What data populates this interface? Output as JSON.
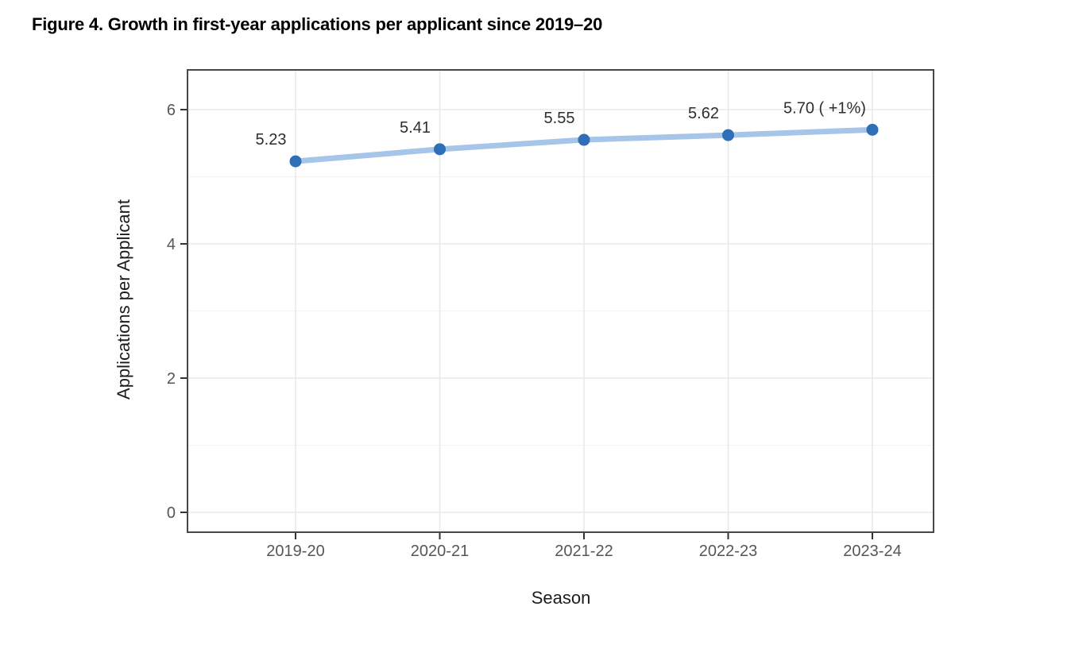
{
  "figure": {
    "title": "Figure 4. Growth in first-year applications per applicant since 2019–20"
  },
  "chart_data": {
    "type": "line",
    "categories": [
      "2019-20",
      "2020-21",
      "2021-22",
      "2022-23",
      "2023-24"
    ],
    "values": [
      5.23,
      5.41,
      5.55,
      5.62,
      5.7
    ],
    "point_labels": [
      "5.23",
      "5.41",
      "5.55",
      "5.62",
      "5.70 ( +1%)"
    ],
    "xlabel": "Season",
    "ylabel": "Applications per Applicant",
    "yticks": [
      0,
      2,
      4,
      6
    ],
    "yticks_minor": [
      1,
      3,
      5
    ],
    "ylim": [
      -0.3,
      6.6
    ],
    "grid": "major and minor horizontal, major vertical at each category",
    "legend": false,
    "colors": {
      "line": "#a6c5e8",
      "point": "#2e6fb7",
      "grid_major": "#e9e9e9",
      "grid_minor": "#f4f4f4",
      "panel_border": "#474747",
      "tick_mark": "#333333",
      "tick_label": "#565656",
      "axis_title": "#1c1c1c",
      "data_label": "#2e2e2e"
    }
  }
}
